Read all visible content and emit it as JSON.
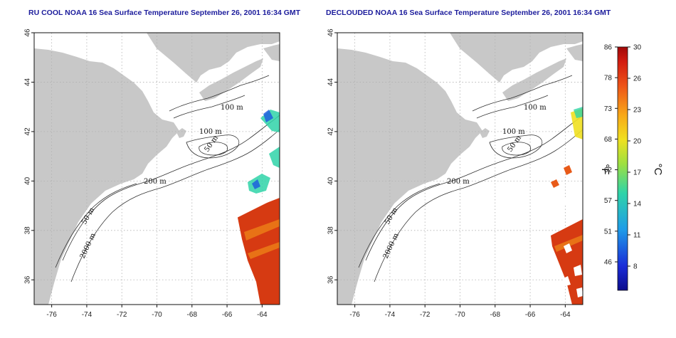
{
  "panels": [
    {
      "title": "RU COOL NOAA 16 Sea Surface Temperature September 26, 2001 16:34 GMT",
      "variant": "raw"
    },
    {
      "title": "DECLOUDED NOAA 16 Sea Surface Temperature September 26, 2001 16:34 GMT",
      "variant": "declouded"
    }
  ],
  "axes": {
    "lon_range": [
      -77,
      -63
    ],
    "lat_range": [
      35,
      46
    ],
    "lon_ticks": [
      "-76",
      "-74",
      "-72",
      "-70",
      "-68",
      "-66",
      "-64"
    ],
    "lat_ticks": [
      "36",
      "38",
      "40",
      "42",
      "44",
      "46"
    ],
    "grid": "dotted"
  },
  "contour_labels": [
    "100 m",
    "100 m",
    "50 m",
    "200 m",
    "50 m",
    "2000 m"
  ],
  "colorbar": {
    "fahrenheit_ticks": [
      "86",
      "78",
      "73",
      "68",
      "62",
      "57",
      "51",
      "46"
    ],
    "celsius_ticks": [
      "30",
      "26",
      "23",
      "20",
      "17",
      "14",
      "11",
      "8"
    ],
    "fahrenheit_unit": "°F",
    "celsius_unit": "°C"
  },
  "colors": {
    "land": "#c8c8c8",
    "contour": "#333333",
    "grid": "#b0b0b0",
    "title": "#1c1c9c",
    "warm": "#d63a12",
    "cool": "#1414c8"
  }
}
